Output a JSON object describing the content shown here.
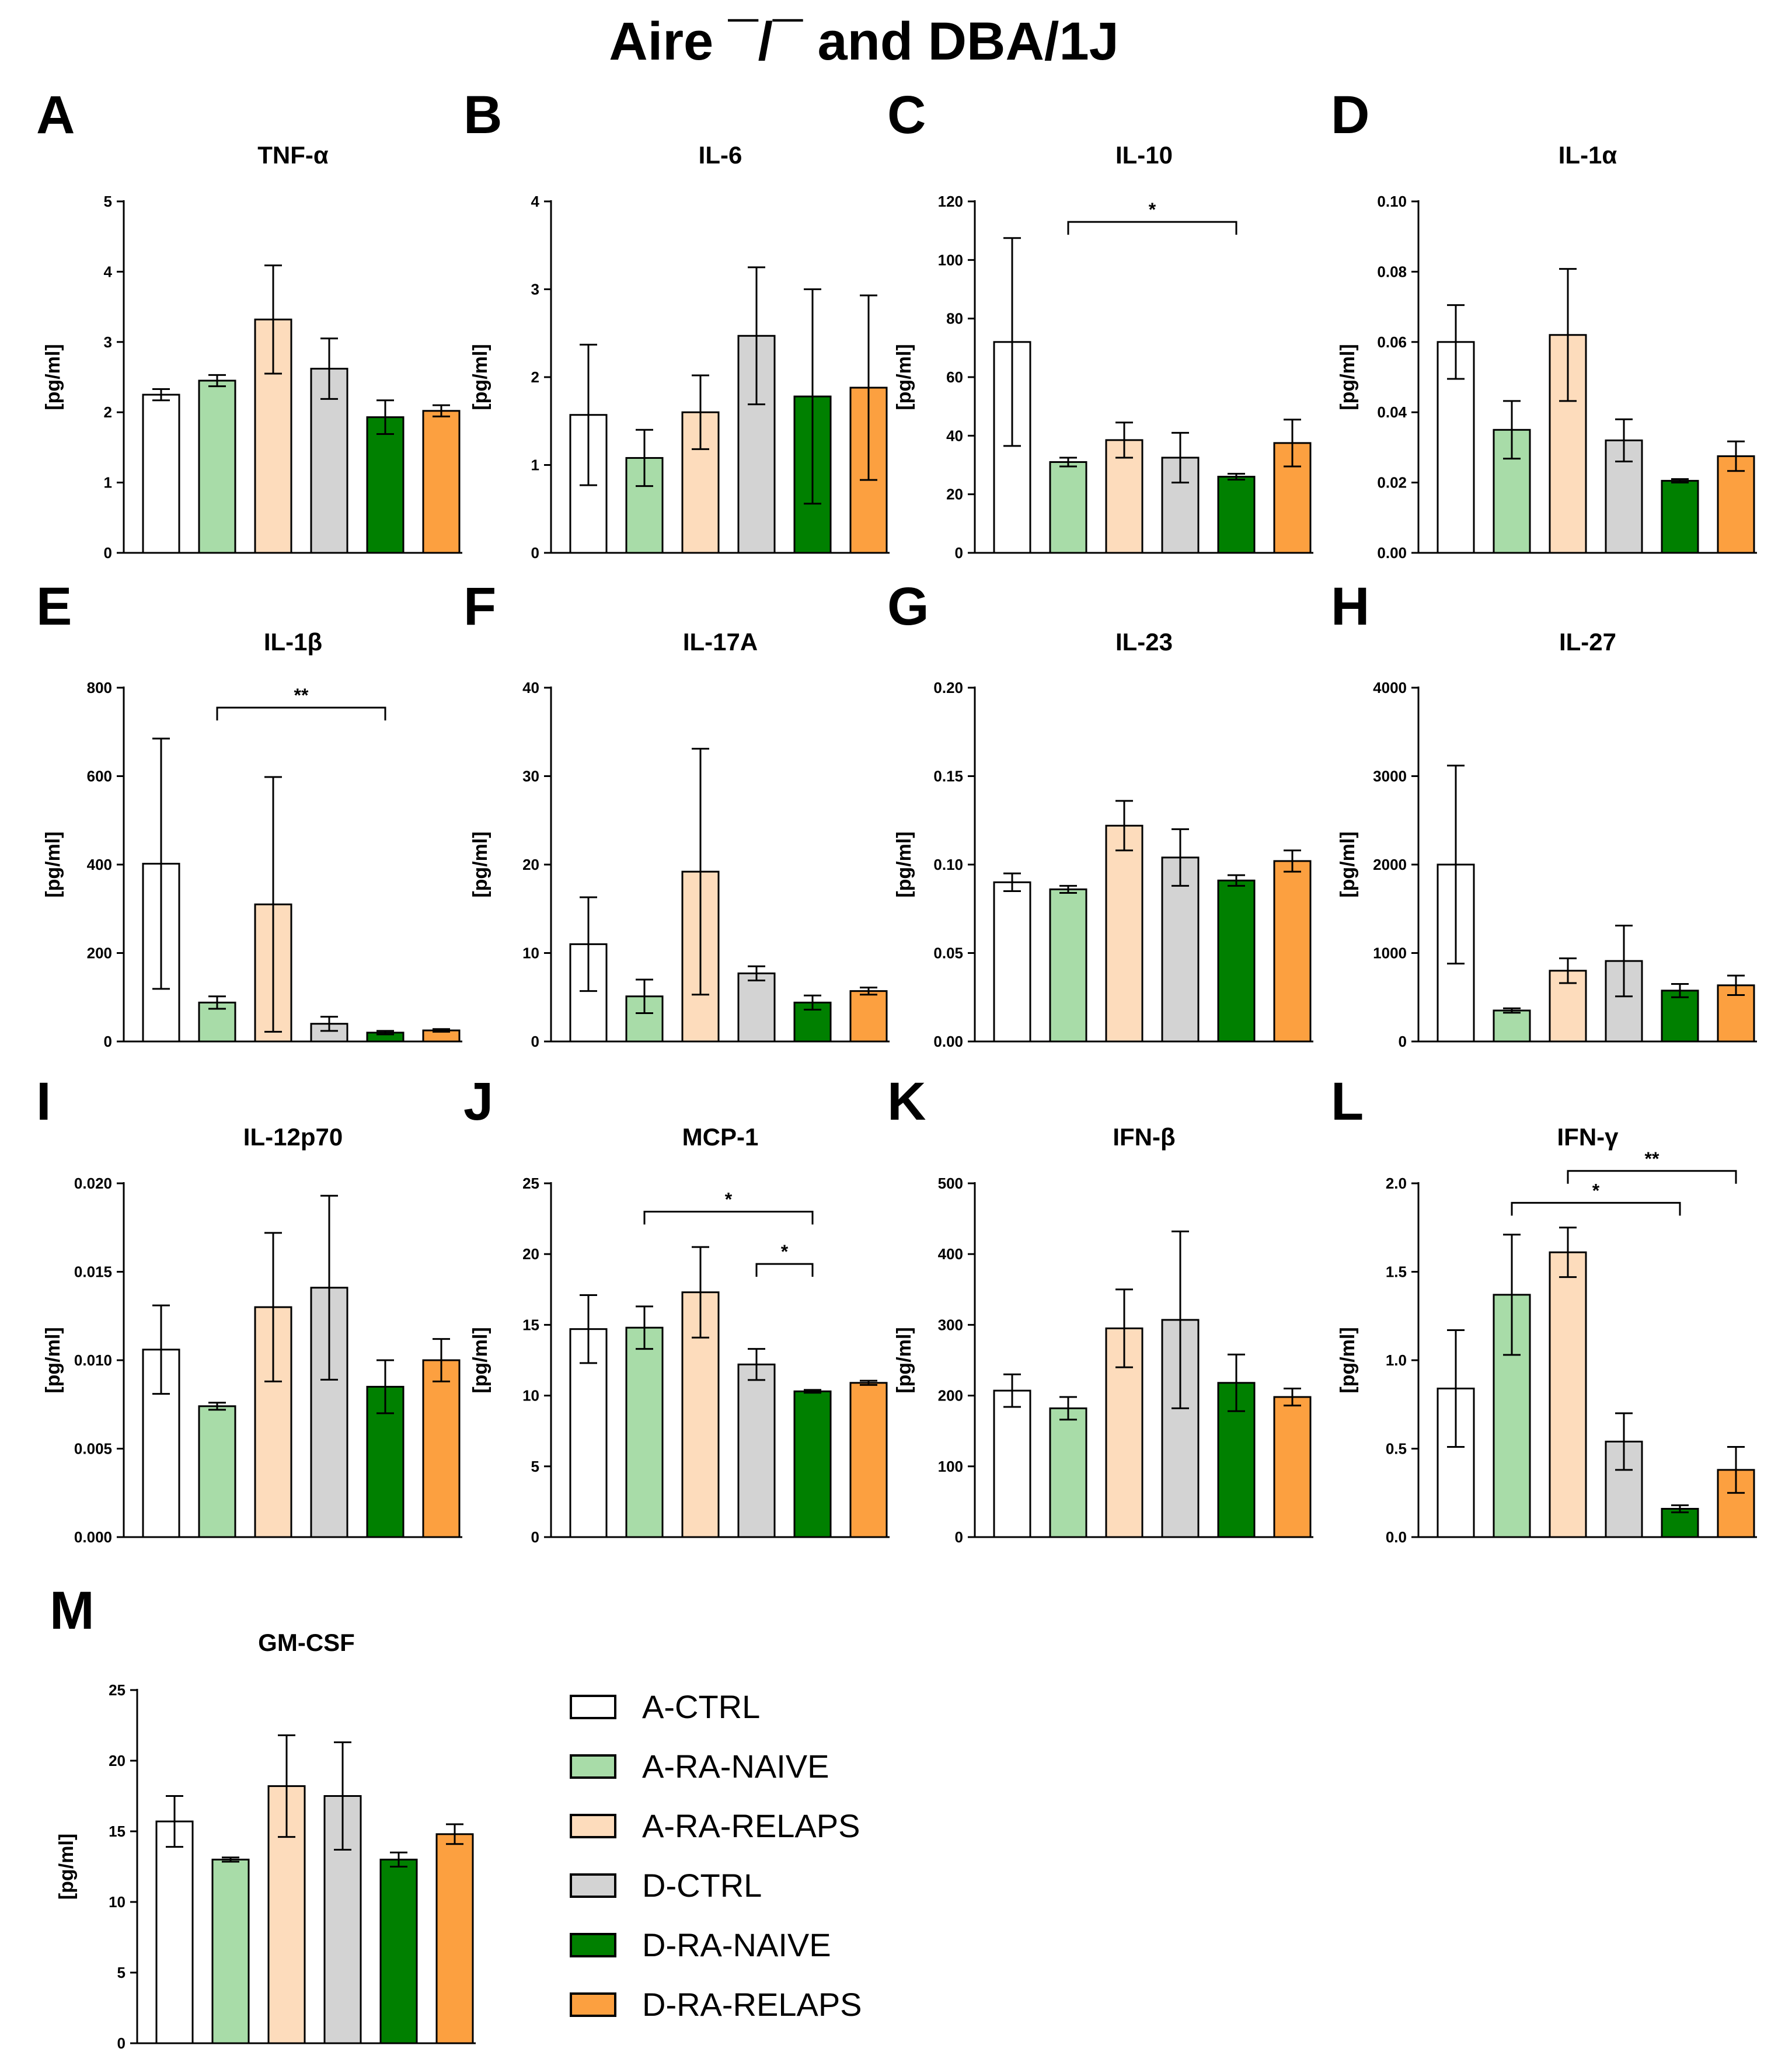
{
  "title": "Aire ¯/¯ and DBA/1J",
  "legend": {
    "entries": [
      {
        "label": "A-CTRL",
        "color": "#ffffff"
      },
      {
        "label": "A-RA-NAIVE",
        "color": "#a8dca8"
      },
      {
        "label": "A-RA-RELAPS",
        "color": "#fddcbc"
      },
      {
        "label": "D-CTRL",
        "color": "#d3d3d3"
      },
      {
        "label": "D-RA-NAIVE",
        "color": "#008000"
      },
      {
        "label": "D-RA-RELAPS",
        "color": "#fca040"
      }
    ]
  },
  "chart_data": [
    {
      "panel": "A",
      "type": "bar",
      "title": "TNF-α",
      "ylabel": "[pg/ml]",
      "ylim": [
        0,
        5
      ],
      "yticks": [
        "0",
        "1",
        "2",
        "3",
        "4",
        "5"
      ],
      "values": [
        2.25,
        2.45,
        3.32,
        2.62,
        1.93,
        2.02
      ],
      "errors": [
        0.08,
        0.08,
        0.77,
        0.43,
        0.24,
        0.08
      ],
      "significance": []
    },
    {
      "panel": "B",
      "type": "bar",
      "title": "IL-6",
      "ylabel": "[pg/ml]",
      "ylim": [
        0,
        4
      ],
      "yticks": [
        "0",
        "1",
        "2",
        "3",
        "4"
      ],
      "values": [
        1.57,
        1.08,
        1.6,
        2.47,
        1.78,
        1.88
      ],
      "errors": [
        0.8,
        0.32,
        0.42,
        0.78,
        1.22,
        1.05
      ],
      "significance": []
    },
    {
      "panel": "C",
      "type": "bar",
      "title": "IL-10",
      "ylabel": "[pg/ml]",
      "ylim": [
        0,
        120
      ],
      "yticks": [
        "0",
        "20",
        "40",
        "60",
        "80",
        "100",
        "120"
      ],
      "values": [
        72,
        31,
        38.5,
        32.5,
        26,
        37.5
      ],
      "errors": [
        35.5,
        1.5,
        6,
        8.5,
        1,
        8
      ],
      "significance": [
        {
          "from": 1,
          "to": 4,
          "label": "*",
          "y": 113
        }
      ]
    },
    {
      "panel": "D",
      "type": "bar",
      "title": "IL-1α",
      "ylabel": "[pg/ml]",
      "ylim": [
        0,
        0.1
      ],
      "yticks": [
        "0.00",
        "0.02",
        "0.04",
        "0.06",
        "0.08",
        "0.10"
      ],
      "values": [
        0.06,
        0.035,
        0.062,
        0.032,
        0.0205,
        0.0275
      ],
      "errors": [
        0.0105,
        0.0082,
        0.0188,
        0.006,
        0.0005,
        0.0042
      ],
      "significance": []
    },
    {
      "panel": "E",
      "type": "bar",
      "title": "IL-1β",
      "ylabel": "[pg/ml]",
      "ylim": [
        0,
        800
      ],
      "yticks": [
        "0",
        "200",
        "400",
        "600",
        "800"
      ],
      "values": [
        402,
        88,
        310,
        40,
        20,
        25
      ],
      "errors": [
        283,
        14,
        288,
        16,
        4,
        3
      ],
      "significance": [
        {
          "from": 1,
          "to": 4,
          "label": "**",
          "y": 755
        }
      ]
    },
    {
      "panel": "F",
      "type": "bar",
      "title": "IL-17A",
      "ylabel": "[pg/ml]",
      "ylim": [
        0,
        40
      ],
      "yticks": [
        "0",
        "10",
        "20",
        "30",
        "40"
      ],
      "values": [
        11,
        5.1,
        19.2,
        7.7,
        4.4,
        5.7
      ],
      "errors": [
        5.3,
        1.9,
        13.9,
        0.8,
        0.8,
        0.4
      ],
      "significance": []
    },
    {
      "panel": "G",
      "type": "bar",
      "title": "IL-23",
      "ylabel": "[pg/ml]",
      "ylim": [
        0,
        0.2
      ],
      "yticks": [
        "0.00",
        "0.05",
        "0.10",
        "0.15",
        "0.20"
      ],
      "values": [
        0.09,
        0.086,
        0.122,
        0.104,
        0.091,
        0.102
      ],
      "errors": [
        0.005,
        0.002,
        0.014,
        0.016,
        0.003,
        0.006
      ],
      "significance": []
    },
    {
      "panel": "H",
      "type": "bar",
      "title": "IL-27",
      "ylabel": "[pg/ml]",
      "ylim": [
        0,
        4000
      ],
      "yticks": [
        "0",
        "1000",
        "2000",
        "3000",
        "4000"
      ],
      "values": [
        2000,
        350,
        800,
        910,
        575,
        635
      ],
      "errors": [
        1120,
        25,
        140,
        400,
        75,
        110
      ],
      "significance": []
    },
    {
      "panel": "I",
      "type": "bar",
      "title": "IL-12p70",
      "ylabel": "[pg/ml]",
      "ylim": [
        0,
        0.02
      ],
      "yticks": [
        "0.000",
        "0.005",
        "0.010",
        "0.015",
        "0.020"
      ],
      "values": [
        0.0106,
        0.0074,
        0.013,
        0.0141,
        0.0085,
        0.01
      ],
      "errors": [
        0.0025,
        0.0002,
        0.0042,
        0.0052,
        0.0015,
        0.0012
      ],
      "significance": []
    },
    {
      "panel": "J",
      "type": "bar",
      "title": "MCP-1",
      "ylabel": "[pg/ml]",
      "ylim": [
        0,
        25
      ],
      "yticks": [
        "0",
        "5",
        "10",
        "15",
        "20",
        "25"
      ],
      "values": [
        14.7,
        14.8,
        17.3,
        12.2,
        10.3,
        10.9
      ],
      "errors": [
        2.4,
        1.5,
        3.2,
        1.1,
        0.1,
        0.15
      ],
      "significance": [
        {
          "from": 1,
          "to": 4,
          "label": "*",
          "y": 23
        },
        {
          "from": 3,
          "to": 4,
          "label": "*",
          "y": 19.3
        }
      ]
    },
    {
      "panel": "K",
      "type": "bar",
      "title": "IFN-β",
      "ylabel": "[pg/ml]",
      "ylim": [
        0,
        500
      ],
      "yticks": [
        "0",
        "100",
        "200",
        "300",
        "400",
        "500"
      ],
      "values": [
        207,
        182,
        295,
        307,
        218,
        198
      ],
      "errors": [
        23,
        16,
        55,
        125,
        40,
        12
      ],
      "significance": []
    },
    {
      "panel": "L",
      "type": "bar",
      "title": "IFN-γ",
      "ylabel": "[pg/ml]",
      "ylim": [
        0,
        2
      ],
      "yticks": [
        "0.0",
        "0.5",
        "1.0",
        "1.5",
        "2.0"
      ],
      "values": [
        0.84,
        1.37,
        1.61,
        0.54,
        0.16,
        0.38
      ],
      "errors": [
        0.33,
        0.34,
        0.14,
        0.16,
        0.02,
        0.13
      ],
      "significance": [
        {
          "from": 1,
          "to": 4,
          "label": "*",
          "y": 1.89
        },
        {
          "from": 2,
          "to": 5,
          "label": "**",
          "y": 2.07
        }
      ]
    },
    {
      "panel": "M",
      "type": "bar",
      "title": "GM-CSF",
      "ylabel": "[pg/ml]",
      "ylim": [
        0,
        25
      ],
      "yticks": [
        "0",
        "5",
        "10",
        "15",
        "20",
        "25"
      ],
      "values": [
        15.7,
        13,
        18.2,
        17.5,
        13,
        14.8
      ],
      "errors": [
        1.8,
        0.15,
        3.6,
        3.8,
        0.5,
        0.7
      ],
      "significance": []
    }
  ]
}
